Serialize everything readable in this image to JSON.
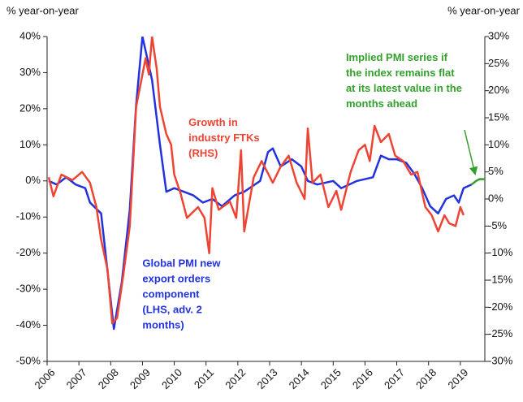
{
  "chart_data": {
    "type": "line",
    "y_label": "% year-on-year",
    "y2_label": "% year-on-year",
    "xlim": [
      2006,
      2019.77
    ],
    "xticks": [
      2006,
      2007,
      2008,
      2009,
      2010,
      2011,
      2012,
      2013,
      2014,
      2015,
      2016,
      2017,
      2018,
      2019
    ],
    "ylim": [
      -50,
      40
    ],
    "yticks": [
      {
        "value": 40,
        "label": "40%"
      },
      {
        "value": 30,
        "label": "30%"
      },
      {
        "value": 20,
        "label": "20%"
      },
      {
        "value": 10,
        "label": "10%"
      },
      {
        "value": 0,
        "label": "0%"
      },
      {
        "value": -10,
        "label": "-10%"
      },
      {
        "value": -20,
        "label": "-20%"
      },
      {
        "value": -30,
        "label": "-30%"
      },
      {
        "value": -40,
        "label": "-40%"
      },
      {
        "value": -50,
        "label": "-50%"
      }
    ],
    "y2lim": [
      -30,
      30
    ],
    "y2ticks": [
      {
        "value": 30,
        "label": "30%"
      },
      {
        "value": 25,
        "label": "25%"
      },
      {
        "value": 20,
        "label": "20%"
      },
      {
        "value": 15,
        "label": "15%"
      },
      {
        "value": 10,
        "label": "10%"
      },
      {
        "value": 5,
        "label": "5%"
      },
      {
        "value": 0,
        "label": "0%"
      },
      {
        "value": -5,
        "label": "-5%"
      },
      {
        "value": -10,
        "label": "-10%"
      },
      {
        "value": -15,
        "label": "-15%"
      },
      {
        "value": -20,
        "label": "-20%"
      },
      {
        "value": -25,
        "label": "-25%"
      },
      {
        "value": -30,
        "label": "-30%"
      }
    ],
    "series": [
      {
        "name": "Global PMI new export orders component (LHS, adv. 2 months)",
        "color": "#2233dd",
        "axis": "y",
        "x": [
          2006.05,
          2006.3,
          2006.6,
          2006.9,
          2007.2,
          2007.35,
          2007.7,
          2007.9,
          2008.1,
          2008.35,
          2008.6,
          2008.8,
          2009.0,
          2009.3,
          2009.55,
          2009.75,
          2010.0,
          2010.3,
          2010.6,
          2010.9,
          2011.2,
          2011.5,
          2011.9,
          2012.2,
          2012.7,
          2012.95,
          2013.1,
          2013.35,
          2013.7,
          2014.0,
          2014.2,
          2014.5,
          2015.0,
          2015.25,
          2015.75,
          2016.25,
          2016.5,
          2016.75,
          2017.0,
          2017.3,
          2017.55,
          2017.8,
          2018.05,
          2018.3,
          2018.55,
          2018.8,
          2018.95,
          2019.1,
          2019.35
        ],
        "values": [
          0,
          -1,
          1,
          -1,
          -2,
          -6,
          -9,
          -25,
          -41,
          -28,
          -8,
          21,
          40,
          28,
          10,
          -3,
          -2,
          -3,
          -4,
          -6,
          -5,
          -7,
          -4,
          -3,
          0,
          8,
          9,
          4,
          6,
          4,
          0,
          -1,
          0,
          -2,
          0,
          1,
          7,
          6,
          6,
          5,
          2,
          -2,
          -7,
          -9,
          -5,
          -4,
          -6,
          -2,
          -1
        ]
      },
      {
        "name": "Implied PMI series if the index remains flat at its latest value in the months ahead",
        "color": "#33a02c",
        "axis": "y",
        "x": [
          2019.35,
          2019.5,
          2019.6,
          2019.77
        ],
        "values": [
          -1,
          0,
          0.5,
          0.5
        ]
      },
      {
        "name": "Growth in industry FTKs (RHS)",
        "color": "#ee4433",
        "axis": "y2",
        "x": [
          2006.05,
          2006.2,
          2006.45,
          2006.8,
          2007.1,
          2007.35,
          2007.55,
          2007.7,
          2007.9,
          2008.05,
          2008.2,
          2008.4,
          2008.6,
          2008.8,
          2009.1,
          2009.2,
          2009.3,
          2009.45,
          2009.55,
          2009.75,
          2009.9,
          2010.0,
          2010.2,
          2010.4,
          2010.75,
          2010.95,
          2011.1,
          2011.2,
          2011.4,
          2011.75,
          2011.95,
          2012.1,
          2012.2,
          2012.5,
          2012.75,
          2013.1,
          2013.35,
          2013.6,
          2013.85,
          2014.1,
          2014.2,
          2014.35,
          2014.6,
          2014.85,
          2015.1,
          2015.25,
          2015.55,
          2015.8,
          2016.0,
          2016.15,
          2016.3,
          2016.5,
          2016.75,
          2016.95,
          2017.2,
          2017.45,
          2017.65,
          2017.9,
          2018.1,
          2018.3,
          2018.5,
          2018.65,
          2018.85,
          2019.0,
          2019.1
        ],
        "values": [
          4,
          0.5,
          4.5,
          3.5,
          5,
          3,
          -1.5,
          -7.5,
          -13,
          -23,
          -22,
          -14,
          -5,
          17,
          26,
          23,
          30,
          24,
          17,
          12,
          10,
          4.5,
          1,
          -3.5,
          -1.5,
          -3.5,
          -10,
          2,
          -2,
          -0.5,
          -3.5,
          9,
          -6,
          4,
          7,
          3,
          6,
          8,
          3,
          0,
          13,
          3,
          4.5,
          -1.5,
          1.5,
          -2,
          5,
          9,
          10,
          7,
          13.5,
          10.5,
          12,
          8,
          7,
          4.5,
          5,
          -1.5,
          -3,
          -6,
          -3,
          -4.5,
          -5,
          -1.5,
          -3
        ]
      }
    ],
    "annotations": [
      {
        "lines": [
          "Growth in",
          "industry FTKs",
          "(RHS)"
        ],
        "color": "#ee4433",
        "x": 2010.45,
        "y": 16
      },
      {
        "lines": [
          "Global PMI new",
          "export orders",
          "component",
          "(LHS, adv. 2",
          "months)"
        ],
        "color": "#2233dd",
        "x": 2009.0,
        "y": -23
      },
      {
        "lines": [
          "Implied PMI series if",
          "the index remains flat",
          "at its latest value in the",
          "months ahead"
        ],
        "color": "#33a02c",
        "x": 2015.4,
        "y": 34
      }
    ]
  }
}
